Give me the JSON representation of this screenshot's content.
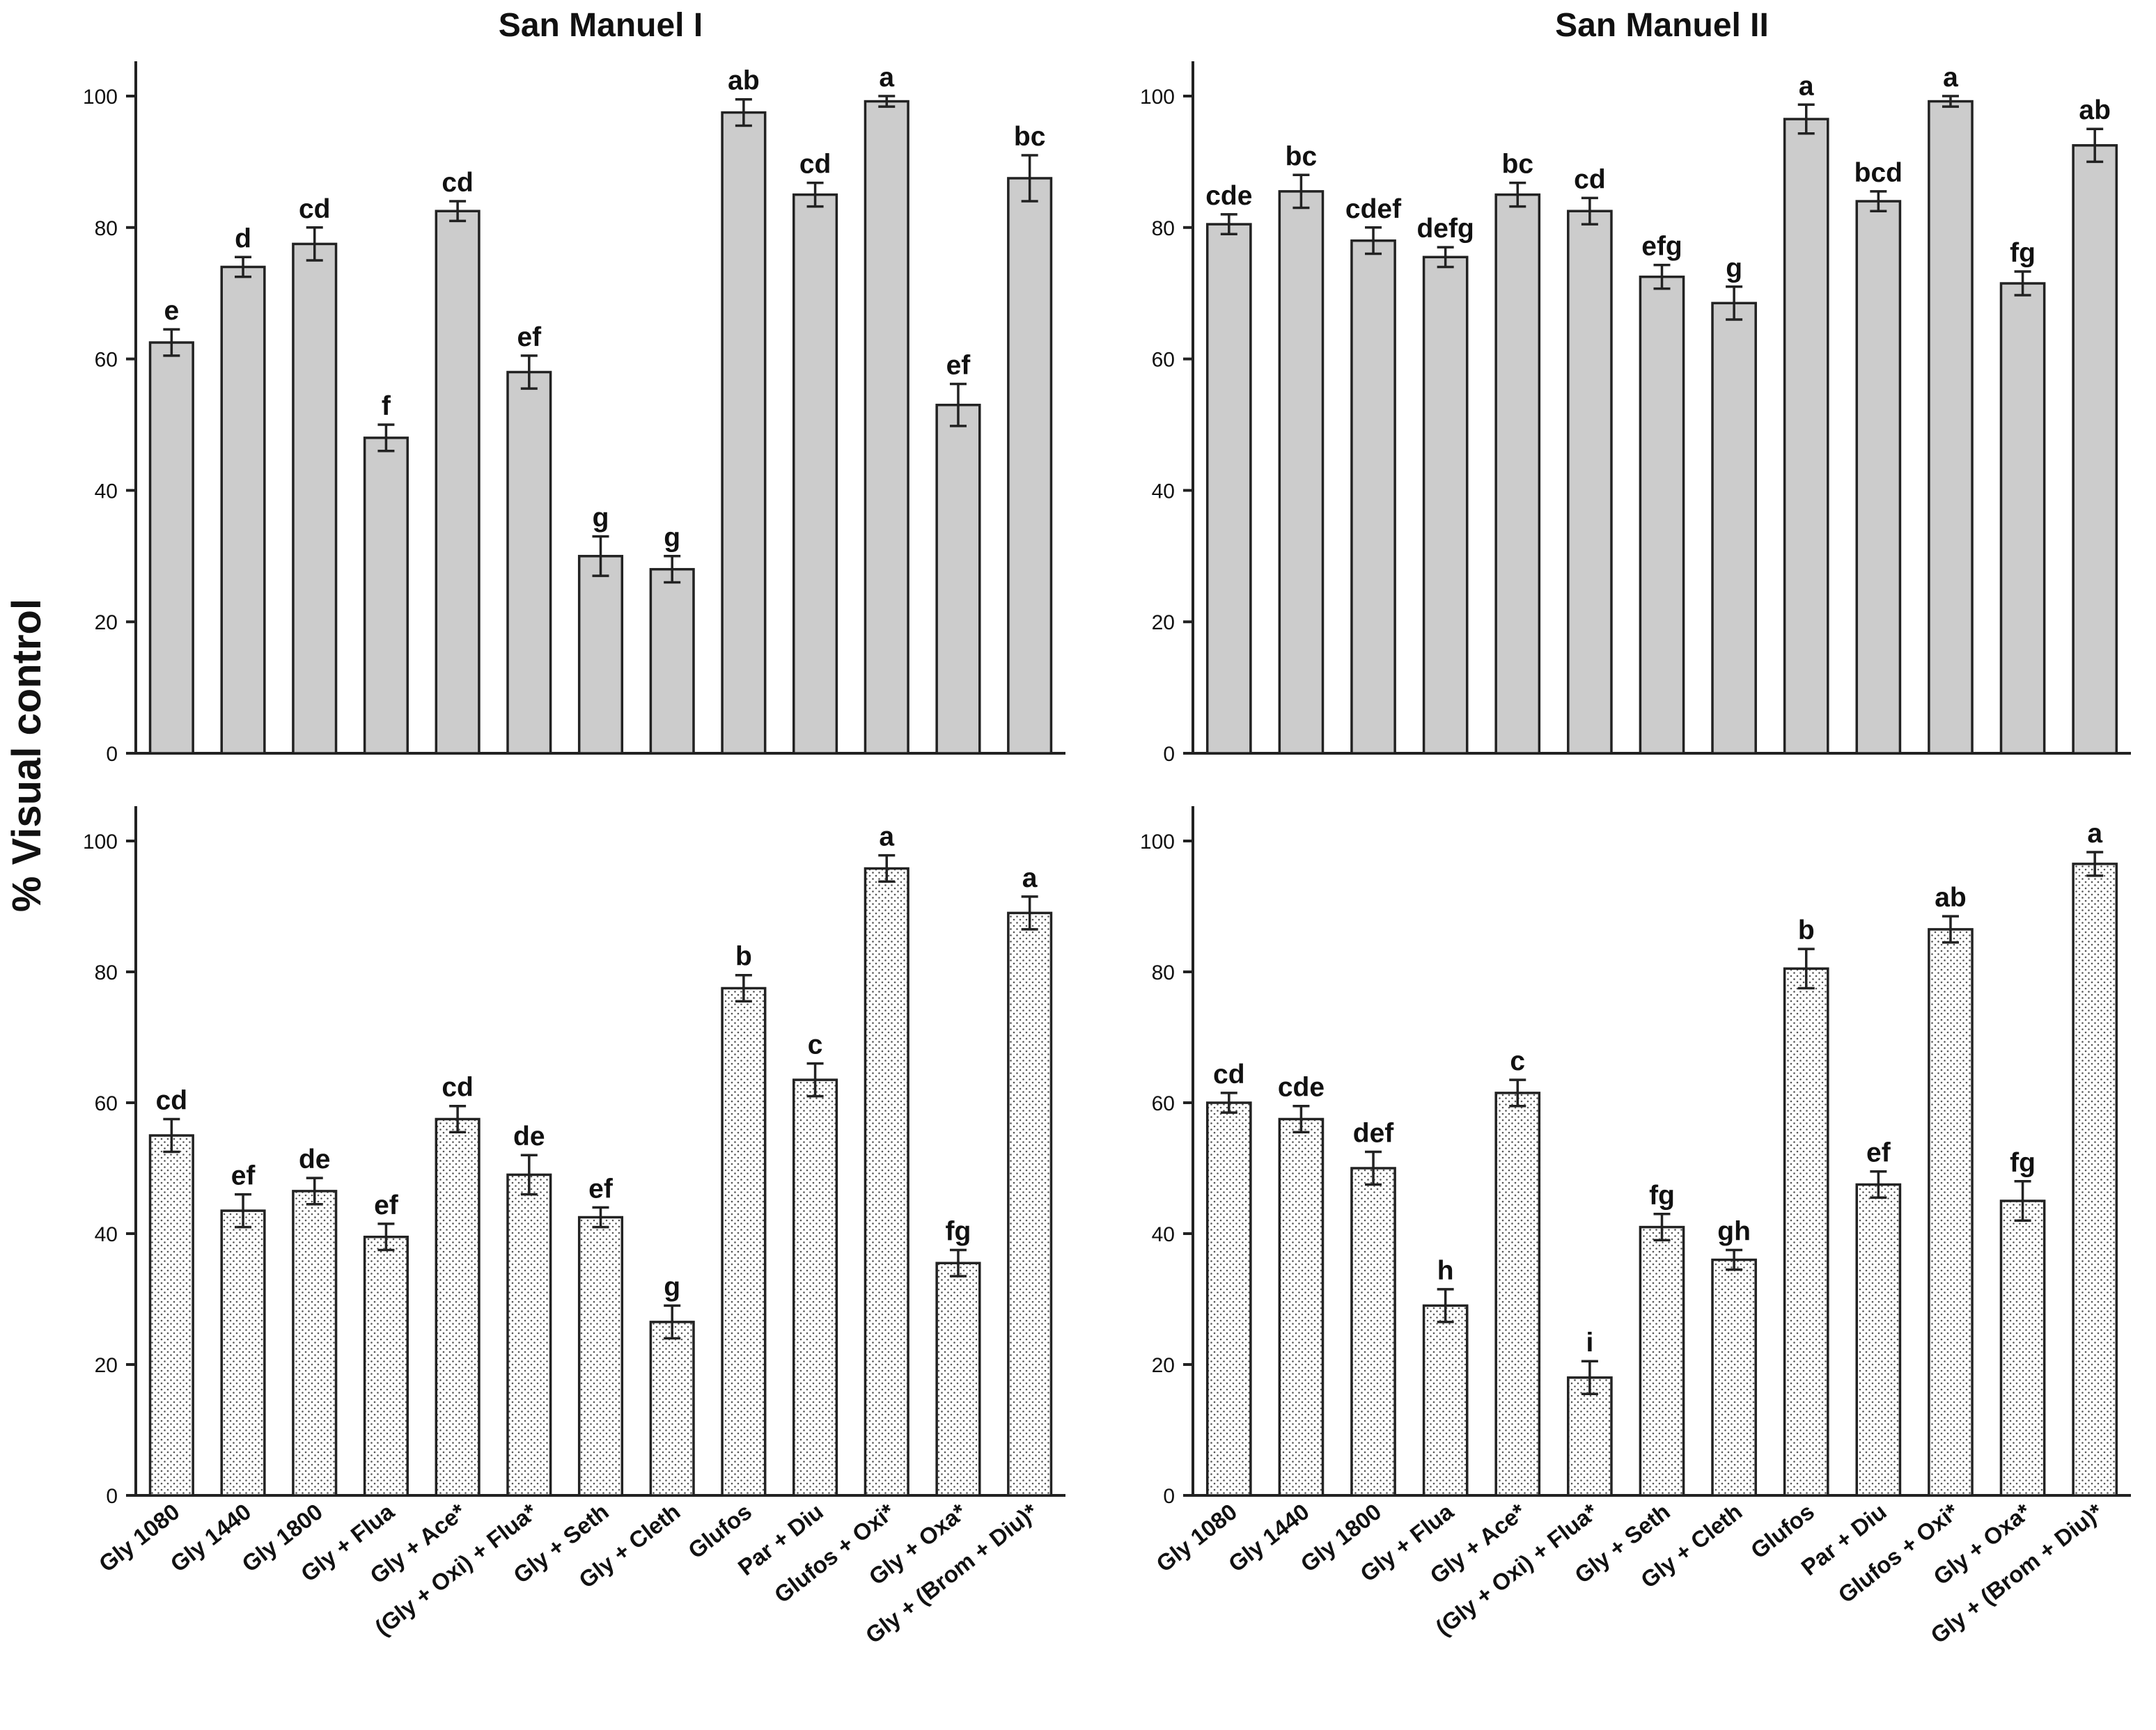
{
  "figure": {
    "ylabel": "% Visual control",
    "colors": {
      "solid_fill": "#cccccc",
      "dotted_fill": "#ffffff",
      "dot": "#555555",
      "ink": "#222222"
    }
  },
  "chart_data": [
    {
      "type": "bar",
      "title": "San Manuel I",
      "panel": "top-left",
      "fill": "solid-gray",
      "ylabel": "% Visual control",
      "ylim": [
        0,
        100
      ],
      "yticks": [
        0,
        20,
        40,
        60,
        80,
        100
      ],
      "categories": [
        "Gly 1080",
        "Gly 1440",
        "Gly 1800",
        "Gly + Flua",
        "Gly + Ace*",
        "(Gly + Oxi) + Flua*",
        "Gly + Seth",
        "Gly + Cleth",
        "Glufos",
        "Par + Diu",
        "Glufos + Oxi*",
        "Gly + Oxa*",
        "Gly + (Brom + Diu)*"
      ],
      "values": [
        62.5,
        74,
        77.5,
        48,
        82.5,
        58,
        30,
        28,
        97.5,
        85,
        99.2,
        53,
        87.5
      ],
      "errors": [
        2,
        1.5,
        2.5,
        2,
        1.5,
        2.5,
        3,
        2,
        2,
        1.8,
        0.8,
        3.2,
        3.5
      ],
      "letters": [
        "e",
        "d",
        "cd",
        "f",
        "cd",
        "ef",
        "g",
        "g",
        "ab",
        "cd",
        "a",
        "ef",
        "bc"
      ]
    },
    {
      "type": "bar",
      "title": "San Manuel II",
      "panel": "top-right",
      "fill": "solid-gray",
      "ylabel": "% Visual control",
      "ylim": [
        0,
        100
      ],
      "yticks": [
        0,
        20,
        40,
        60,
        80,
        100
      ],
      "categories": [
        "Gly 1080",
        "Gly 1440",
        "Gly 1800",
        "Gly + Flua",
        "Gly + Ace*",
        "(Gly + Oxi) + Flua*",
        "Gly + Seth",
        "Gly + Cleth",
        "Glufos",
        "Par + Diu",
        "Glufos + Oxi*",
        "Gly + Oxa*",
        "Gly + (Brom + Diu)*"
      ],
      "values": [
        80.5,
        85.5,
        78,
        75.5,
        85,
        82.5,
        72.5,
        68.5,
        96.5,
        84,
        99.2,
        71.5,
        92.5
      ],
      "errors": [
        1.5,
        2.5,
        2,
        1.5,
        1.8,
        2,
        1.8,
        2.5,
        2.2,
        1.5,
        0.8,
        1.8,
        2.5
      ],
      "letters": [
        "cde",
        "bc",
        "cdef",
        "defg",
        "bc",
        "cd",
        "efg",
        "g",
        "a",
        "bcd",
        "a",
        "fg",
        "ab"
      ]
    },
    {
      "type": "bar",
      "title": "",
      "panel": "bottom-left",
      "fill": "dotted",
      "ylabel": "% Visual control",
      "ylim": [
        0,
        100
      ],
      "yticks": [
        0,
        20,
        40,
        60,
        80,
        100
      ],
      "categories": [
        "Gly 1080",
        "Gly 1440",
        "Gly 1800",
        "Gly + Flua",
        "Gly + Ace*",
        "(Gly + Oxi) + Flua*",
        "Gly + Seth",
        "Gly + Cleth",
        "Glufos",
        "Par + Diu",
        "Glufos + Oxi*",
        "Gly + Oxa*",
        "Gly + (Brom + Diu)*"
      ],
      "values": [
        55,
        43.5,
        46.5,
        39.5,
        57.5,
        49,
        42.5,
        26.5,
        77.5,
        63.5,
        95.8,
        35.5,
        89
      ],
      "errors": [
        2.5,
        2.5,
        2,
        2,
        2,
        3,
        1.5,
        2.5,
        2,
        2.5,
        2,
        2,
        2.5
      ],
      "letters": [
        "cd",
        "ef",
        "de",
        "ef",
        "cd",
        "de",
        "ef",
        "g",
        "b",
        "c",
        "a",
        "fg",
        "a"
      ]
    },
    {
      "type": "bar",
      "title": "",
      "panel": "bottom-right",
      "fill": "dotted",
      "ylabel": "% Visual control",
      "ylim": [
        0,
        100
      ],
      "yticks": [
        0,
        20,
        40,
        60,
        80,
        100
      ],
      "categories": [
        "Gly 1080",
        "Gly 1440",
        "Gly 1800",
        "Gly + Flua",
        "Gly + Ace*",
        "(Gly + Oxi) + Flua*",
        "Gly + Seth",
        "Gly + Cleth",
        "Glufos",
        "Par + Diu",
        "Glufos + Oxi*",
        "Gly + Oxa*",
        "Gly + (Brom + Diu)*"
      ],
      "values": [
        60,
        57.5,
        50,
        29,
        61.5,
        18,
        41,
        36,
        80.5,
        47.5,
        86.5,
        45,
        96.5
      ],
      "errors": [
        1.5,
        2,
        2.5,
        2.5,
        2,
        2.5,
        2,
        1.5,
        3,
        2,
        2,
        3,
        1.8
      ],
      "letters": [
        "cd",
        "cde",
        "def",
        "h",
        "c",
        "i",
        "fg",
        "gh",
        "b",
        "ef",
        "ab",
        "fg",
        "a"
      ]
    }
  ]
}
